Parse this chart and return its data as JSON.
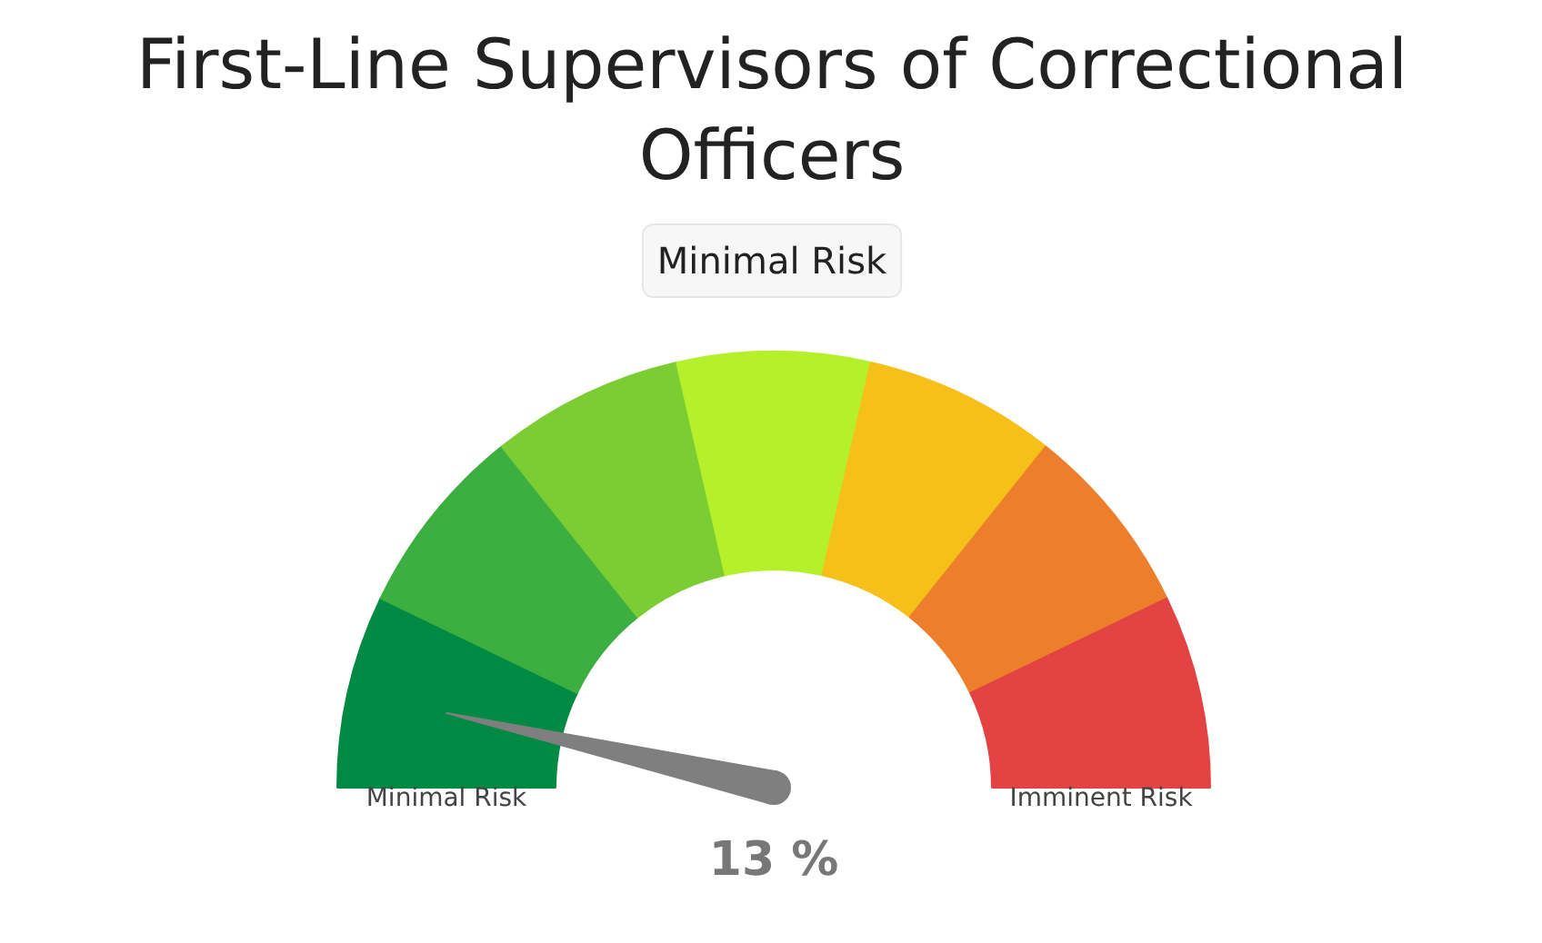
{
  "chart_data": {
    "type": "donut",
    "title": "First-Line Supervisors of Correctional Officers",
    "subtitle": "Minimal Risk",
    "categories": [
      "Minimal Risk",
      null,
      null,
      null,
      null,
      null,
      "Imminent Risk"
    ],
    "values": [
      14.29,
      14.29,
      14.28,
      14.28,
      14.28,
      14.29,
      14.29
    ],
    "colors": [
      "#008a44",
      "#3dae40",
      "#7bcd33",
      "#b5f02b",
      "#f6c01a",
      "#ed7f2c",
      "#e34343"
    ],
    "needle": "Minimal Risk",
    "annotations": [
      "13 %"
    ]
  }
}
